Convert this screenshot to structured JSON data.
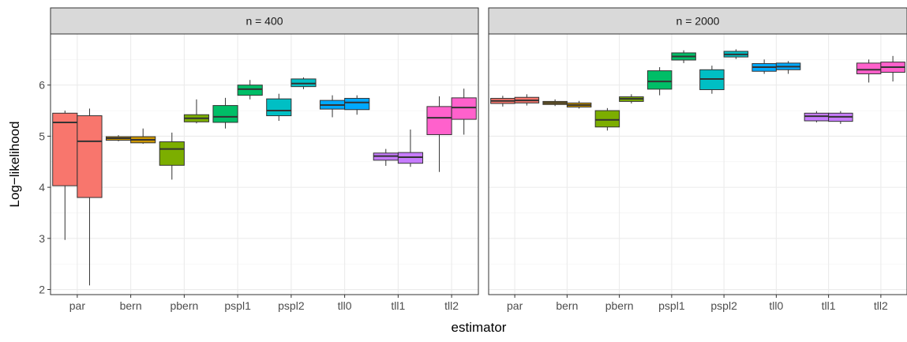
{
  "chart_data": {
    "type": "boxplot",
    "ylabel": "Log−likelihood",
    "xlabel": "estimator",
    "ylim": [
      1.9,
      7.0
    ],
    "yticks": [
      2,
      3,
      4,
      5,
      6
    ],
    "categories": [
      "par",
      "bern",
      "pbern",
      "pspl1",
      "pspl2",
      "tll0",
      "tll1",
      "tll2"
    ],
    "colors": {
      "par": "#F8766D",
      "bern": "#CD9600",
      "pbern": "#7CAE00",
      "pspl1": "#00BE67",
      "pspl2": "#00BFC4",
      "tll0": "#00A9FF",
      "tll1": "#C77CFF",
      "tll2": "#FF61CC"
    },
    "grid": true,
    "panels": [
      {
        "title": "n = 400",
        "boxes": [
          {
            "category": "par",
            "slot": 0,
            "min": 2.97,
            "q1": 4.03,
            "median": 5.27,
            "q3": 5.45,
            "max": 5.5
          },
          {
            "category": "par",
            "slot": 1,
            "min": 2.08,
            "q1": 3.8,
            "median": 4.9,
            "q3": 5.4,
            "max": 5.54
          },
          {
            "category": "bern",
            "slot": 0,
            "min": 4.9,
            "q1": 4.92,
            "median": 4.96,
            "q3": 4.99,
            "max": 5.02
          },
          {
            "category": "bern",
            "slot": 1,
            "min": 4.85,
            "q1": 4.87,
            "median": 4.93,
            "q3": 4.99,
            "max": 5.15
          },
          {
            "category": "pbern",
            "slot": 0,
            "min": 4.15,
            "q1": 4.43,
            "median": 4.75,
            "q3": 4.89,
            "max": 5.07
          },
          {
            "category": "pbern",
            "slot": 1,
            "min": 5.25,
            "q1": 5.28,
            "median": 5.35,
            "q3": 5.42,
            "max": 5.72
          },
          {
            "category": "pspl1",
            "slot": 0,
            "min": 5.15,
            "q1": 5.27,
            "median": 5.38,
            "q3": 5.6,
            "max": 5.75
          },
          {
            "category": "pspl1",
            "slot": 1,
            "min": 5.72,
            "q1": 5.8,
            "median": 5.92,
            "q3": 6.0,
            "max": 6.1
          },
          {
            "category": "pspl2",
            "slot": 0,
            "min": 5.3,
            "q1": 5.4,
            "median": 5.5,
            "q3": 5.73,
            "max": 5.83
          },
          {
            "category": "pspl2",
            "slot": 1,
            "min": 5.92,
            "q1": 5.97,
            "median": 6.03,
            "q3": 6.12,
            "max": 6.15
          },
          {
            "category": "tll0",
            "slot": 0,
            "min": 5.37,
            "q1": 5.53,
            "median": 5.61,
            "q3": 5.7,
            "max": 5.8
          },
          {
            "category": "tll0",
            "slot": 1,
            "min": 5.42,
            "q1": 5.52,
            "median": 5.66,
            "q3": 5.74,
            "max": 5.8
          },
          {
            "category": "tll1",
            "slot": 0,
            "min": 4.42,
            "q1": 4.53,
            "median": 4.61,
            "q3": 4.67,
            "max": 4.75
          },
          {
            "category": "tll1",
            "slot": 1,
            "min": 4.4,
            "q1": 4.47,
            "median": 4.59,
            "q3": 4.68,
            "max": 5.13
          },
          {
            "category": "tll2",
            "slot": 0,
            "min": 4.3,
            "q1": 5.03,
            "median": 5.36,
            "q3": 5.58,
            "max": 5.78
          },
          {
            "category": "tll2",
            "slot": 1,
            "min": 5.03,
            "q1": 5.33,
            "median": 5.56,
            "q3": 5.75,
            "max": 5.93
          }
        ]
      },
      {
        "title": "n = 2000",
        "boxes": [
          {
            "category": "par",
            "slot": 0,
            "min": 5.58,
            "q1": 5.64,
            "median": 5.69,
            "q3": 5.74,
            "max": 5.79
          },
          {
            "category": "par",
            "slot": 1,
            "min": 5.6,
            "q1": 5.65,
            "median": 5.7,
            "q3": 5.76,
            "max": 5.82
          },
          {
            "category": "bern",
            "slot": 0,
            "min": 5.59,
            "q1": 5.62,
            "median": 5.65,
            "q3": 5.68,
            "max": 5.72
          },
          {
            "category": "bern",
            "slot": 1,
            "min": 5.54,
            "q1": 5.57,
            "median": 5.61,
            "q3": 5.65,
            "max": 5.69
          },
          {
            "category": "pbern",
            "slot": 0,
            "min": 5.11,
            "q1": 5.18,
            "median": 5.32,
            "q3": 5.5,
            "max": 5.55
          },
          {
            "category": "pbern",
            "slot": 1,
            "min": 5.64,
            "q1": 5.68,
            "median": 5.73,
            "q3": 5.77,
            "max": 5.82
          },
          {
            "category": "pspl1",
            "slot": 0,
            "min": 5.8,
            "q1": 5.92,
            "median": 6.07,
            "q3": 6.28,
            "max": 6.35
          },
          {
            "category": "pspl1",
            "slot": 1,
            "min": 6.43,
            "q1": 6.49,
            "median": 6.56,
            "q3": 6.63,
            "max": 6.68
          },
          {
            "category": "pspl2",
            "slot": 0,
            "min": 5.83,
            "q1": 5.91,
            "median": 6.12,
            "q3": 6.3,
            "max": 6.38
          },
          {
            "category": "pspl2",
            "slot": 1,
            "min": 6.51,
            "q1": 6.55,
            "median": 6.6,
            "q3": 6.66,
            "max": 6.7
          },
          {
            "category": "tll0",
            "slot": 0,
            "min": 6.22,
            "q1": 6.27,
            "median": 6.35,
            "q3": 6.42,
            "max": 6.5
          },
          {
            "category": "tll0",
            "slot": 1,
            "min": 6.22,
            "q1": 6.3,
            "median": 6.36,
            "q3": 6.43,
            "max": 6.47
          },
          {
            "category": "tll1",
            "slot": 0,
            "min": 5.27,
            "q1": 5.3,
            "median": 5.39,
            "q3": 5.45,
            "max": 5.49
          },
          {
            "category": "tll1",
            "slot": 1,
            "min": 5.24,
            "q1": 5.29,
            "median": 5.38,
            "q3": 5.45,
            "max": 5.49
          },
          {
            "category": "tll2",
            "slot": 0,
            "min": 6.05,
            "q1": 6.22,
            "median": 6.3,
            "q3": 6.43,
            "max": 6.5
          },
          {
            "category": "tll2",
            "slot": 1,
            "min": 6.07,
            "q1": 6.25,
            "median": 6.35,
            "q3": 6.45,
            "max": 6.57
          }
        ]
      }
    ]
  }
}
